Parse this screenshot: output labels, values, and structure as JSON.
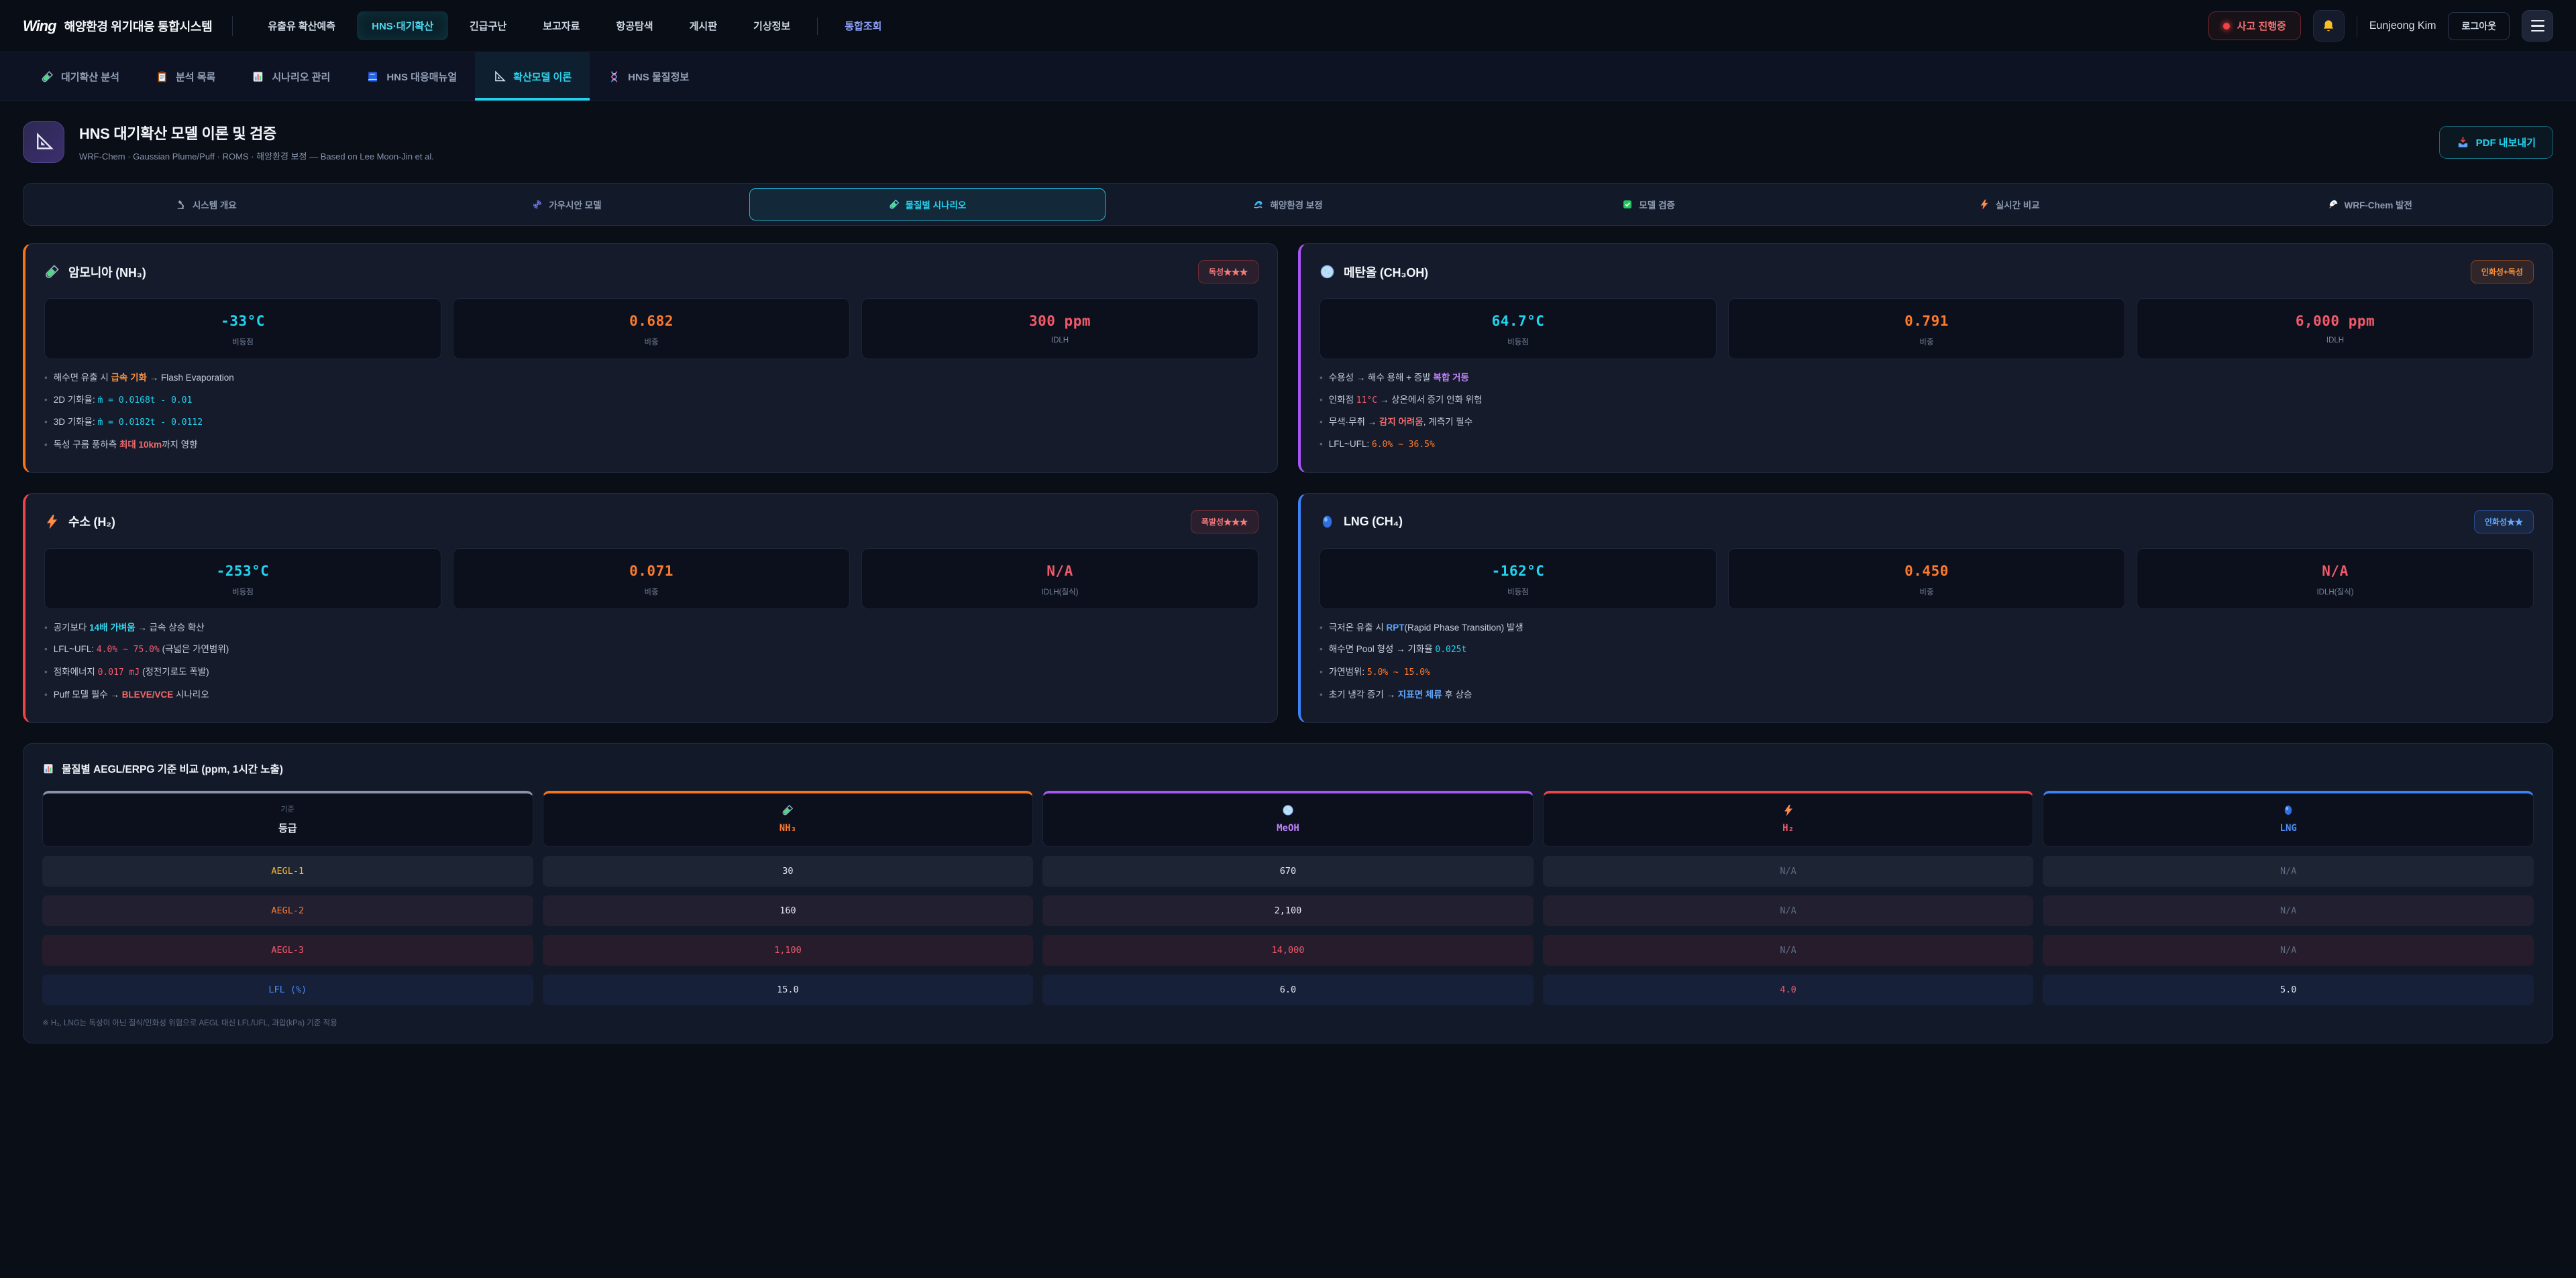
{
  "colors": {
    "cyan": "#22d3ee",
    "orange": "#f97316",
    "purple": "#a855f7",
    "red": "#ef4444",
    "blue": "#3b82f6",
    "gold": "#fbbf24",
    "indigo": "#8b9ff8"
  },
  "header": {
    "brand": {
      "logo": "Wing",
      "title": "해양환경 위기대응 통합시스템"
    },
    "nav": [
      {
        "label": "유출유 확산예측"
      },
      {
        "label": "HNS·대기확산",
        "active": true
      },
      {
        "label": "긴급구난"
      },
      {
        "label": "보고자료"
      },
      {
        "label": "항공탐색"
      },
      {
        "label": "게시판"
      },
      {
        "label": "기상정보"
      },
      {
        "label": "통합조회",
        "highlight": true
      }
    ],
    "incident_badge": "사고 진행중",
    "bell_icon": "bell-icon",
    "user_name": "Eunjeong Kim",
    "logout_label": "로그아웃"
  },
  "subnav": [
    {
      "label": "대기확산 분석",
      "icon": "test-tube-icon"
    },
    {
      "label": "분석 목록",
      "icon": "clipboard-icon"
    },
    {
      "label": "시나리오 관리",
      "icon": "bar-chart-icon"
    },
    {
      "label": "HNS 대응매뉴얼",
      "icon": "book-icon"
    },
    {
      "label": "확산모델 이론",
      "icon": "set-square-icon",
      "active": true
    },
    {
      "label": "HNS 물질정보",
      "icon": "dna-icon"
    }
  ],
  "page": {
    "title": "HNS 대기확산 모델 이론 및 검증",
    "subtitle": "WRF-Chem · Gaussian Plume/Puff · ROMS · 해양환경 보정 — Based on Lee Moon-Jin et al.",
    "export_label": "PDF 내보내기"
  },
  "tabs": [
    {
      "label": "시스템 개요",
      "icon": "microscope-icon"
    },
    {
      "label": "가우시안 모델",
      "icon": "cyclone-icon"
    },
    {
      "label": "물질별 시나리오",
      "icon": "test-tube-icon",
      "active": true
    },
    {
      "label": "해양환경 보정",
      "icon": "wave-icon"
    },
    {
      "label": "모델 검증",
      "icon": "check-icon"
    },
    {
      "label": "실시간 비교",
      "icon": "lightning-icon"
    },
    {
      "label": "WRF-Chem 발전",
      "icon": "rocket-icon"
    }
  ],
  "cards": [
    {
      "name": "암모니아 (NH₃)",
      "icon": "test-tube-icon",
      "accent": "#f97316",
      "badge": "독성★★★",
      "badge_type": "red",
      "stats": [
        {
          "value": "-33°C",
          "label": "비등점",
          "color": "cyan"
        },
        {
          "value": "0.682",
          "label": "비중",
          "color": "orange"
        },
        {
          "value": "300 ppm",
          "label": "IDLH",
          "color": "red"
        }
      ],
      "bullets": [
        [
          {
            "t": "해수면 유출 시 ",
            "s": "p"
          },
          {
            "t": "급속 기화",
            "s": "ob"
          },
          {
            "t": " → Flash Evaporation",
            "s": "p"
          }
        ],
        [
          {
            "t": "2D 기화율: ",
            "s": "p"
          },
          {
            "t": "ṁ = 0.0168t - 0.01",
            "s": "cm"
          }
        ],
        [
          {
            "t": "3D 기화율: ",
            "s": "p"
          },
          {
            "t": "ṁ = 0.0182t - 0.0112",
            "s": "cm"
          }
        ],
        [
          {
            "t": "독성 구름 풍하측 ",
            "s": "p"
          },
          {
            "t": "최대 10km",
            "s": "rb"
          },
          {
            "t": "까지 영향",
            "s": "p"
          }
        ]
      ]
    },
    {
      "name": "메탄올 (CH₃OH)",
      "icon": "petri-dish-icon",
      "accent": "#a855f7",
      "badge": "인화성+독성",
      "badge_type": "orange",
      "stats": [
        {
          "value": "64.7°C",
          "label": "비등점",
          "color": "cyan"
        },
        {
          "value": "0.791",
          "label": "비중",
          "color": "orange"
        },
        {
          "value": "6,000 ppm",
          "label": "IDLH",
          "color": "red"
        }
      ],
      "bullets": [
        [
          {
            "t": "수용성 → 해수 용해 + 증발 ",
            "s": "p"
          },
          {
            "t": "복합 거동",
            "s": "pb"
          }
        ],
        [
          {
            "t": "인화점 ",
            "s": "p"
          },
          {
            "t": "11°C",
            "s": "rm"
          },
          {
            "t": " → 상온에서 증기 인화 위험",
            "s": "p"
          }
        ],
        [
          {
            "t": "무색·무취 → ",
            "s": "p"
          },
          {
            "t": "감지 어려움",
            "s": "rb"
          },
          {
            "t": ", 계측기 필수",
            "s": "p"
          }
        ],
        [
          {
            "t": "LFL~UFL: ",
            "s": "p"
          },
          {
            "t": "6.0% ~ 36.5%",
            "s": "om"
          }
        ]
      ]
    },
    {
      "name": "수소 (H₂)",
      "icon": "lightning-icon",
      "accent": "#ef4444",
      "badge": "폭발성★★★",
      "badge_type": "red",
      "stats": [
        {
          "value": "-253°C",
          "label": "비등점",
          "color": "cyan"
        },
        {
          "value": "0.071",
          "label": "비중",
          "color": "orange"
        },
        {
          "value": "N/A",
          "label": "IDLH(질식)",
          "color": "red"
        }
      ],
      "bullets": [
        [
          {
            "t": "공기보다 ",
            "s": "p"
          },
          {
            "t": "14배 가벼움",
            "s": "cb"
          },
          {
            "t": " → 급속 상승 확산",
            "s": "p"
          }
        ],
        [
          {
            "t": "LFL~UFL: ",
            "s": "p"
          },
          {
            "t": "4.0% ~ 75.0%",
            "s": "rm"
          },
          {
            "t": " (극넓은 가연범위)",
            "s": "p"
          }
        ],
        [
          {
            "t": "점화에너지 ",
            "s": "p"
          },
          {
            "t": "0.017 mJ",
            "s": "rm"
          },
          {
            "t": " (정전기로도 폭발)",
            "s": "p"
          }
        ],
        [
          {
            "t": "Puff 모델 필수 → ",
            "s": "p"
          },
          {
            "t": "BLEVE/VCE",
            "s": "rb"
          },
          {
            "t": " 시나리오",
            "s": "p"
          }
        ]
      ]
    },
    {
      "name": "LNG (CH₄)",
      "icon": "blue-sphere-icon",
      "accent": "#3b82f6",
      "badge": "인화성★★",
      "badge_type": "blue",
      "stats": [
        {
          "value": "-162°C",
          "label": "비등점",
          "color": "cyan"
        },
        {
          "value": "0.450",
          "label": "비중",
          "color": "orange"
        },
        {
          "value": "N/A",
          "label": "IDLH(질식)",
          "color": "red"
        }
      ],
      "bullets": [
        [
          {
            "t": "극저온 유출 시 ",
            "s": "p"
          },
          {
            "t": "RPT",
            "s": "bb"
          },
          {
            "t": "(Rapid Phase Transition) 발생",
            "s": "p"
          }
        ],
        [
          {
            "t": "해수면 Pool 형성 → 기화율 ",
            "s": "p"
          },
          {
            "t": "0.025t",
            "s": "cm"
          }
        ],
        [
          {
            "t": "가연범위: ",
            "s": "p"
          },
          {
            "t": "5.0% ~ 15.0%",
            "s": "om"
          }
        ],
        [
          {
            "t": "초기 냉각 증기 → ",
            "s": "p"
          },
          {
            "t": "지표면 체류",
            "s": "bb"
          },
          {
            "t": " 후 상승",
            "s": "p"
          }
        ]
      ]
    }
  ],
  "table": {
    "title": "물질별 AEGL/ERPG 기준 비교 (ppm, 1시간 노출)",
    "title_icon": "bar-chart-icon",
    "columns": [
      {
        "sub": "기준",
        "label": "등급",
        "accent": "#8a94a6"
      },
      {
        "label": "NH₃",
        "icon": "test-tube-icon",
        "accent": "#f97316"
      },
      {
        "label": "MeOH",
        "icon": "petri-dish-icon",
        "accent": "#a855f7"
      },
      {
        "label": "H₂",
        "icon": "lightning-icon",
        "accent": "#ef4444"
      },
      {
        "label": "LNG",
        "icon": "blue-sphere-icon",
        "accent": "#3b82f6"
      }
    ],
    "rows": [
      {
        "label": "AEGL-1",
        "values": [
          {
            "text": "30"
          },
          {
            "text": "670"
          },
          {
            "text": "N/A"
          },
          {
            "text": "N/A"
          }
        ]
      },
      {
        "label": "AEGL-2",
        "values": [
          {
            "text": "160"
          },
          {
            "text": "2,100"
          },
          {
            "text": "N/A"
          },
          {
            "text": "N/A"
          }
        ]
      },
      {
        "label": "AEGL-3",
        "values": [
          {
            "text": "1,100"
          },
          {
            "text": "14,000"
          },
          {
            "text": "N/A"
          },
          {
            "text": "N/A"
          }
        ]
      },
      {
        "label": "LFL (%)",
        "values": [
          {
            "text": "15.0"
          },
          {
            "text": "6.0"
          },
          {
            "text": "4.0"
          },
          {
            "text": "5.0"
          }
        ]
      }
    ],
    "footnote": "※ H₂, LNG는 독성이 아닌 질식/인화성 위험으로 AEGL 대신 LFL/UFL, 과압(kPa) 기준 적용"
  }
}
